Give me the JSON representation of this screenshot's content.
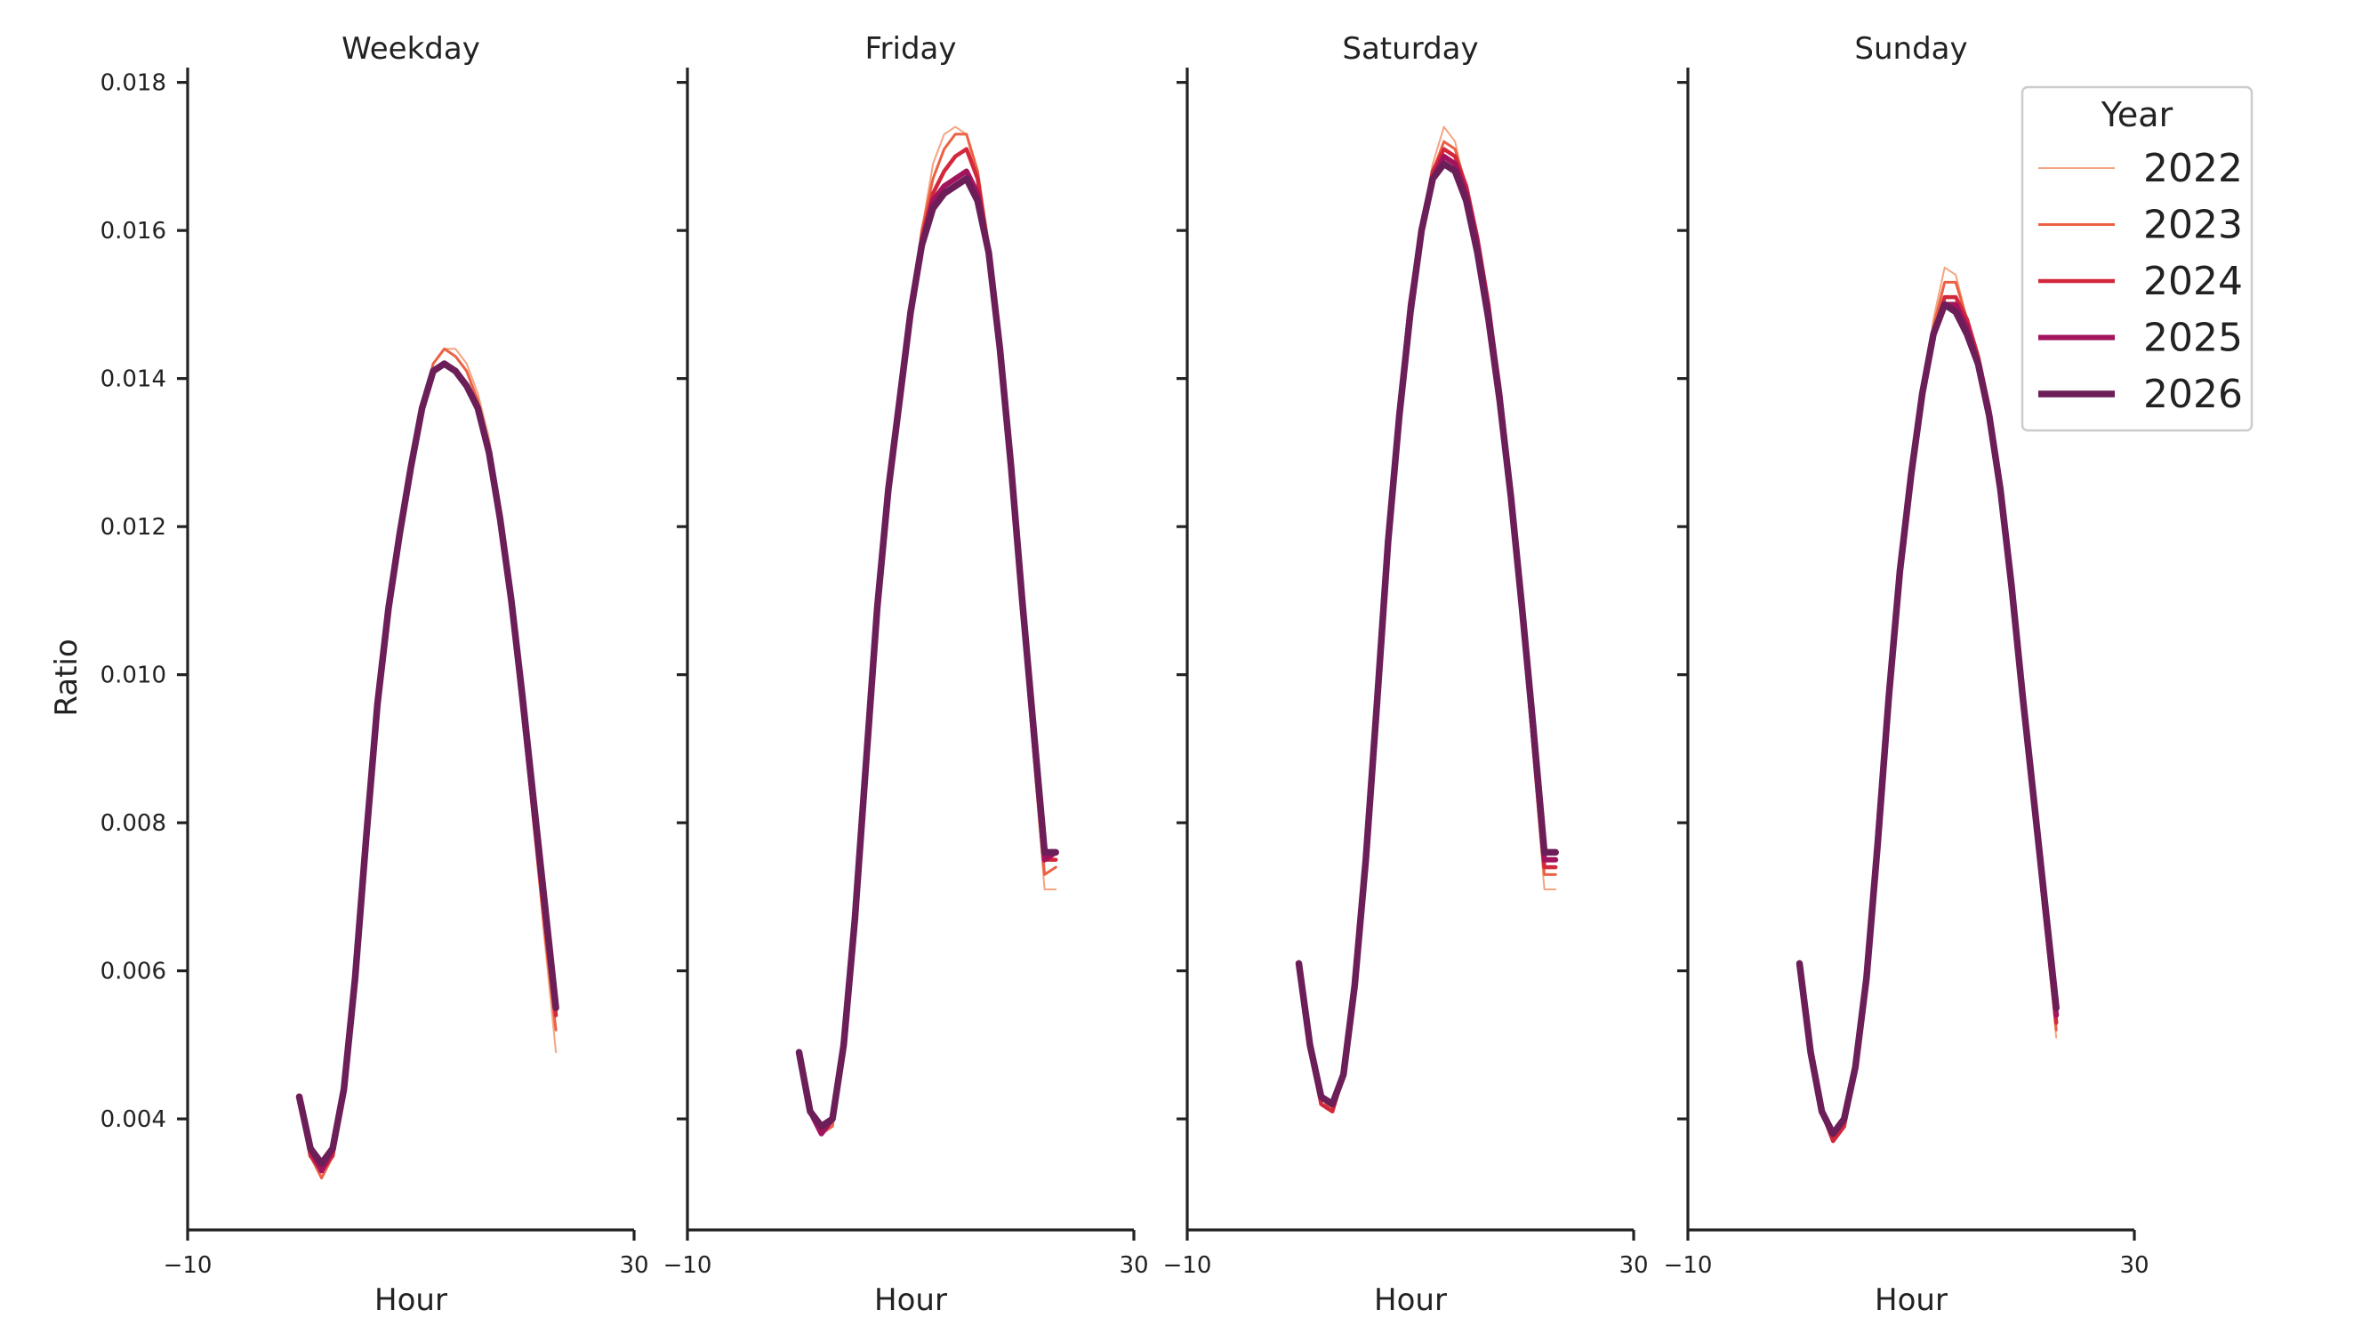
{
  "chart_data": {
    "type": "line",
    "ylabel": "Ratio",
    "xlabel": "Hour",
    "xlim": [
      -10,
      30
    ],
    "ylim": [
      0.0025,
      0.0182
    ],
    "xticks": [
      -10,
      30
    ],
    "xtick_labels": [
      "−10",
      "30"
    ],
    "yticks": [
      0.004,
      0.006,
      0.008,
      0.01,
      0.012,
      0.014,
      0.016,
      0.018
    ],
    "ytick_labels": [
      "0.004",
      "0.006",
      "0.008",
      "0.010",
      "0.012",
      "0.014",
      "0.016",
      "0.018"
    ],
    "legend": {
      "title": "Year",
      "placement": "top-right",
      "entries": [
        {
          "name": "2022",
          "color": "#f3a481",
          "width": 2
        },
        {
          "name": "2023",
          "color": "#eb6144",
          "width": 3
        },
        {
          "name": "2024",
          "color": "#d3283c",
          "width": 4.5
        },
        {
          "name": "2025",
          "color": "#a2145d",
          "width": 6
        },
        {
          "name": "2026",
          "color": "#6b1e58",
          "width": 7.5
        }
      ]
    },
    "x": [
      0,
      1,
      2,
      3,
      4,
      5,
      6,
      7,
      8,
      9,
      10,
      11,
      12,
      13,
      14,
      15,
      16,
      17,
      18,
      19,
      20,
      21,
      22,
      23
    ],
    "panels": [
      {
        "title": "Weekday",
        "series": [
          {
            "name": "2022",
            "values": [
              0.0043,
              0.0035,
              0.0032,
              0.0035,
              0.0044,
              0.0059,
              0.0078,
              0.0096,
              0.0109,
              0.0119,
              0.0128,
              0.0136,
              0.0142,
              0.0144,
              0.0144,
              0.0142,
              0.0138,
              0.0132,
              0.0122,
              0.011,
              0.0096,
              0.008,
              0.0064,
              0.0049
            ]
          },
          {
            "name": "2023",
            "values": [
              0.0043,
              0.0035,
              0.0032,
              0.0035,
              0.0044,
              0.0059,
              0.0078,
              0.0096,
              0.0109,
              0.0119,
              0.0128,
              0.0136,
              0.0142,
              0.0144,
              0.0143,
              0.0141,
              0.0137,
              0.0131,
              0.0121,
              0.0109,
              0.0095,
              0.008,
              0.0065,
              0.0052
            ]
          },
          {
            "name": "2024",
            "values": [
              0.0043,
              0.0035,
              0.0033,
              0.0035,
              0.0044,
              0.0059,
              0.0078,
              0.0096,
              0.0109,
              0.0119,
              0.0128,
              0.0136,
              0.0141,
              0.0142,
              0.0141,
              0.0139,
              0.0136,
              0.013,
              0.0121,
              0.0109,
              0.0096,
              0.0081,
              0.0067,
              0.0054
            ]
          },
          {
            "name": "2025",
            "values": [
              0.0043,
              0.0036,
              0.0033,
              0.0036,
              0.0044,
              0.0059,
              0.0078,
              0.0096,
              0.0109,
              0.0119,
              0.0128,
              0.0136,
              0.0141,
              0.0142,
              0.0141,
              0.0139,
              0.0136,
              0.013,
              0.0121,
              0.011,
              0.0096,
              0.0082,
              0.0068,
              0.0055
            ]
          },
          {
            "name": "2026",
            "values": [
              0.0043,
              0.0036,
              0.0034,
              0.0036,
              0.0044,
              0.0059,
              0.0078,
              0.0096,
              0.0109,
              0.0119,
              0.0128,
              0.0136,
              0.0141,
              0.0142,
              0.0141,
              0.0139,
              0.0136,
              0.013,
              0.0121,
              0.011,
              0.0097,
              0.0083,
              0.0069,
              0.0055
            ]
          }
        ]
      },
      {
        "title": "Friday",
        "series": [
          {
            "name": "2022",
            "values": [
              0.0049,
              0.0041,
              0.0038,
              0.0039,
              0.005,
              0.0067,
              0.0088,
              0.0109,
              0.0125,
              0.0137,
              0.0149,
              0.016,
              0.0169,
              0.0173,
              0.0174,
              0.0173,
              0.0167,
              0.0157,
              0.0143,
              0.0126,
              0.0108,
              0.0089,
              0.0071,
              0.0071
            ]
          },
          {
            "name": "2023",
            "values": [
              0.0049,
              0.0041,
              0.0038,
              0.0039,
              0.005,
              0.0067,
              0.0088,
              0.0109,
              0.0125,
              0.0137,
              0.0149,
              0.016,
              0.0167,
              0.0171,
              0.0173,
              0.0173,
              0.0168,
              0.0158,
              0.0144,
              0.0127,
              0.0109,
              0.009,
              0.0073,
              0.0074
            ]
          },
          {
            "name": "2024",
            "values": [
              0.0049,
              0.0041,
              0.0038,
              0.004,
              0.005,
              0.0067,
              0.0088,
              0.0109,
              0.0125,
              0.0137,
              0.0149,
              0.0159,
              0.0165,
              0.0168,
              0.017,
              0.0171,
              0.0167,
              0.0157,
              0.0144,
              0.0128,
              0.011,
              0.0092,
              0.0075,
              0.0075
            ]
          },
          {
            "name": "2025",
            "values": [
              0.0049,
              0.0041,
              0.0038,
              0.004,
              0.005,
              0.0067,
              0.0088,
              0.0109,
              0.0125,
              0.0137,
              0.0149,
              0.0158,
              0.0164,
              0.0166,
              0.0167,
              0.0168,
              0.0165,
              0.0157,
              0.0144,
              0.0128,
              0.011,
              0.0092,
              0.0075,
              0.0076
            ]
          },
          {
            "name": "2026",
            "values": [
              0.0049,
              0.0041,
              0.0039,
              0.004,
              0.005,
              0.0067,
              0.0088,
              0.0109,
              0.0125,
              0.0137,
              0.0149,
              0.0158,
              0.0163,
              0.0165,
              0.0166,
              0.0167,
              0.0164,
              0.0157,
              0.0144,
              0.0128,
              0.011,
              0.0093,
              0.0076,
              0.0076
            ]
          }
        ]
      },
      {
        "title": "Saturday",
        "series": [
          {
            "name": "2022",
            "values": [
              0.0061,
              0.005,
              0.0043,
              0.0042,
              0.0046,
              0.0058,
              0.0075,
              0.0096,
              0.0118,
              0.0135,
              0.0151,
              0.0161,
              0.0169,
              0.0174,
              0.0172,
              0.0165,
              0.0158,
              0.015,
              0.0138,
              0.0123,
              0.0107,
              0.0089,
              0.0071,
              0.0071
            ]
          },
          {
            "name": "2023",
            "values": [
              0.0061,
              0.005,
              0.0043,
              0.0041,
              0.0046,
              0.0058,
              0.0075,
              0.0096,
              0.0118,
              0.0135,
              0.015,
              0.0161,
              0.0168,
              0.0172,
              0.0171,
              0.0166,
              0.0159,
              0.015,
              0.0138,
              0.0124,
              0.0108,
              0.009,
              0.0073,
              0.0073
            ]
          },
          {
            "name": "2024",
            "values": [
              0.0061,
              0.005,
              0.0042,
              0.0041,
              0.0046,
              0.0058,
              0.0075,
              0.0096,
              0.0118,
              0.0135,
              0.015,
              0.016,
              0.0168,
              0.0171,
              0.017,
              0.0166,
              0.0159,
              0.015,
              0.0138,
              0.0124,
              0.0109,
              0.0091,
              0.0074,
              0.0074
            ]
          },
          {
            "name": "2025",
            "values": [
              0.0061,
              0.005,
              0.0043,
              0.0042,
              0.0046,
              0.0058,
              0.0075,
              0.0096,
              0.0118,
              0.0135,
              0.015,
              0.016,
              0.0167,
              0.017,
              0.0169,
              0.0165,
              0.0158,
              0.0149,
              0.0138,
              0.0124,
              0.0109,
              0.0092,
              0.0075,
              0.0075
            ]
          },
          {
            "name": "2026",
            "values": [
              0.0061,
              0.005,
              0.0043,
              0.0042,
              0.0046,
              0.0058,
              0.0075,
              0.0096,
              0.0118,
              0.0135,
              0.0149,
              0.016,
              0.0167,
              0.0169,
              0.0168,
              0.0164,
              0.0157,
              0.0148,
              0.0137,
              0.0124,
              0.0109,
              0.0093,
              0.0076,
              0.0076
            ]
          }
        ]
      },
      {
        "title": "Sunday",
        "series": [
          {
            "name": "2022",
            "values": [
              0.0061,
              0.0049,
              0.0041,
              0.0038,
              0.004,
              0.0047,
              0.0059,
              0.0077,
              0.0097,
              0.0114,
              0.0127,
              0.0138,
              0.0148,
              0.0155,
              0.0154,
              0.0148,
              0.0143,
              0.0136,
              0.0126,
              0.0112,
              0.0097,
              0.0081,
              0.0066,
              0.0051
            ]
          },
          {
            "name": "2023",
            "values": [
              0.0061,
              0.0049,
              0.0041,
              0.0038,
              0.004,
              0.0047,
              0.0059,
              0.0077,
              0.0097,
              0.0114,
              0.0127,
              0.0138,
              0.0147,
              0.0153,
              0.0153,
              0.0148,
              0.0143,
              0.0136,
              0.0126,
              0.0112,
              0.0097,
              0.0082,
              0.0067,
              0.0052
            ]
          },
          {
            "name": "2024",
            "values": [
              0.0061,
              0.0049,
              0.0041,
              0.0037,
              0.0039,
              0.0047,
              0.0059,
              0.0077,
              0.0097,
              0.0114,
              0.0127,
              0.0138,
              0.0146,
              0.0151,
              0.0151,
              0.0148,
              0.0143,
              0.0136,
              0.0126,
              0.0112,
              0.0097,
              0.0082,
              0.0068,
              0.0053
            ]
          },
          {
            "name": "2025",
            "values": [
              0.0061,
              0.0049,
              0.0041,
              0.0038,
              0.004,
              0.0047,
              0.0059,
              0.0077,
              0.0097,
              0.0114,
              0.0127,
              0.0138,
              0.0146,
              0.015,
              0.015,
              0.0147,
              0.0142,
              0.0135,
              0.0125,
              0.0112,
              0.0097,
              0.0083,
              0.0068,
              0.0054
            ]
          },
          {
            "name": "2026",
            "values": [
              0.0061,
              0.0049,
              0.0041,
              0.0038,
              0.004,
              0.0047,
              0.0059,
              0.0077,
              0.0097,
              0.0114,
              0.0127,
              0.0138,
              0.0146,
              0.015,
              0.0149,
              0.0146,
              0.0142,
              0.0135,
              0.0125,
              0.0112,
              0.0097,
              0.0083,
              0.0069,
              0.0055
            ]
          }
        ]
      }
    ]
  }
}
